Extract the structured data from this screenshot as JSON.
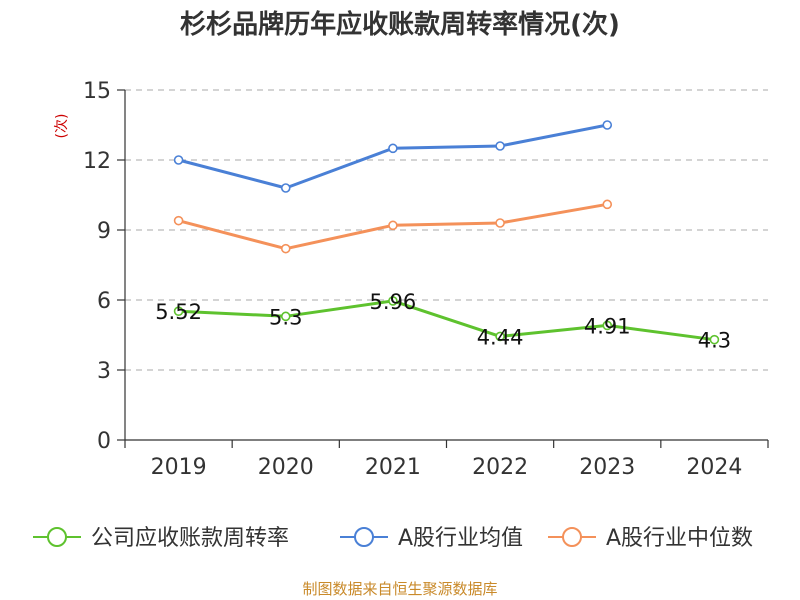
{
  "chart_data": {
    "type": "line",
    "title": "杉杉品牌历年应收账款周转率情况(次)",
    "ylabel": "(次)",
    "xlabel": "",
    "categories": [
      "2019",
      "2020",
      "2021",
      "2022",
      "2023",
      "2024"
    ],
    "ylim": [
      0,
      15
    ],
    "yticks": [
      0,
      3,
      6,
      9,
      12,
      15
    ],
    "grid": true,
    "legend_position": "bottom",
    "series": [
      {
        "name": "公司应收账款周转率",
        "color": "#5ec22e",
        "values": [
          5.52,
          5.3,
          5.96,
          4.44,
          4.91,
          4.3
        ],
        "labels": [
          "5.52",
          "5.3",
          "5.96",
          "4.44",
          "4.91",
          "4.3"
        ]
      },
      {
        "name": "A股行业均值",
        "color": "#4a80d6",
        "values": [
          12.0,
          10.8,
          12.5,
          12.6,
          13.5,
          null
        ]
      },
      {
        "name": "A股行业中位数",
        "color": "#f4915a",
        "values": [
          9.4,
          8.2,
          9.2,
          9.3,
          10.1,
          null
        ]
      }
    ],
    "source": "制图数据来自恒生聚源数据库"
  }
}
